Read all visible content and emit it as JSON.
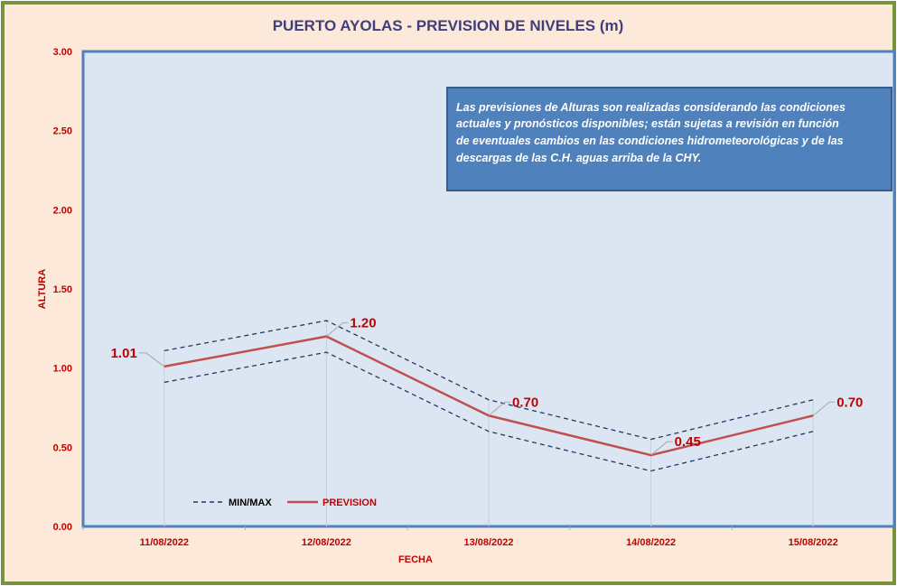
{
  "chart_data": {
    "type": "line",
    "title": "PUERTO AYOLAS - PREVISION DE NIVELES (m)",
    "xlabel": "FECHA",
    "ylabel": "ALTURA",
    "categories": [
      "11/08/2022",
      "12/08/2022",
      "13/08/2022",
      "14/08/2022",
      "15/08/2022"
    ],
    "ylim": [
      0,
      3
    ],
    "yticks": [
      "0.00",
      "0.50",
      "1.00",
      "1.50",
      "2.00",
      "2.50",
      "3.00"
    ],
    "series": [
      {
        "name": "PREVISION",
        "values": [
          1.01,
          1.2,
          0.7,
          0.45,
          0.7
        ],
        "labels": [
          "1.01",
          "1.20",
          "0.70",
          "0.45",
          "0.70"
        ],
        "color": "#c0504d"
      },
      {
        "name": "MAX",
        "values": [
          1.11,
          1.3,
          0.8,
          0.55,
          0.8
        ],
        "color": "#1f3864"
      },
      {
        "name": "MIN",
        "values": [
          0.91,
          1.1,
          0.6,
          0.35,
          0.6
        ],
        "color": "#1f3864"
      }
    ],
    "legend": {
      "position": "bottom-left",
      "entries": [
        "MIN/MAX",
        "PREVISION"
      ]
    },
    "annotation": "Las previsiones de Alturas son realizadas considerando las condiciones actuales y pronósticos disponibles;  están sujetas a revisión en función de eventuales cambios en las condiciones hidrometeorológicas y de las descargas de las C.H. aguas arriba de la CHY.",
    "annotation_lines": [
      "Las previsiones de Alturas son realizadas considerando las condiciones",
      "actuales y pronósticos disponibles;  están sujetas a revisión en función",
      "de eventuales cambios en las condiciones hidrometeorológicas y de las",
      "descargas de las C.H. aguas arriba de la CHY."
    ]
  }
}
